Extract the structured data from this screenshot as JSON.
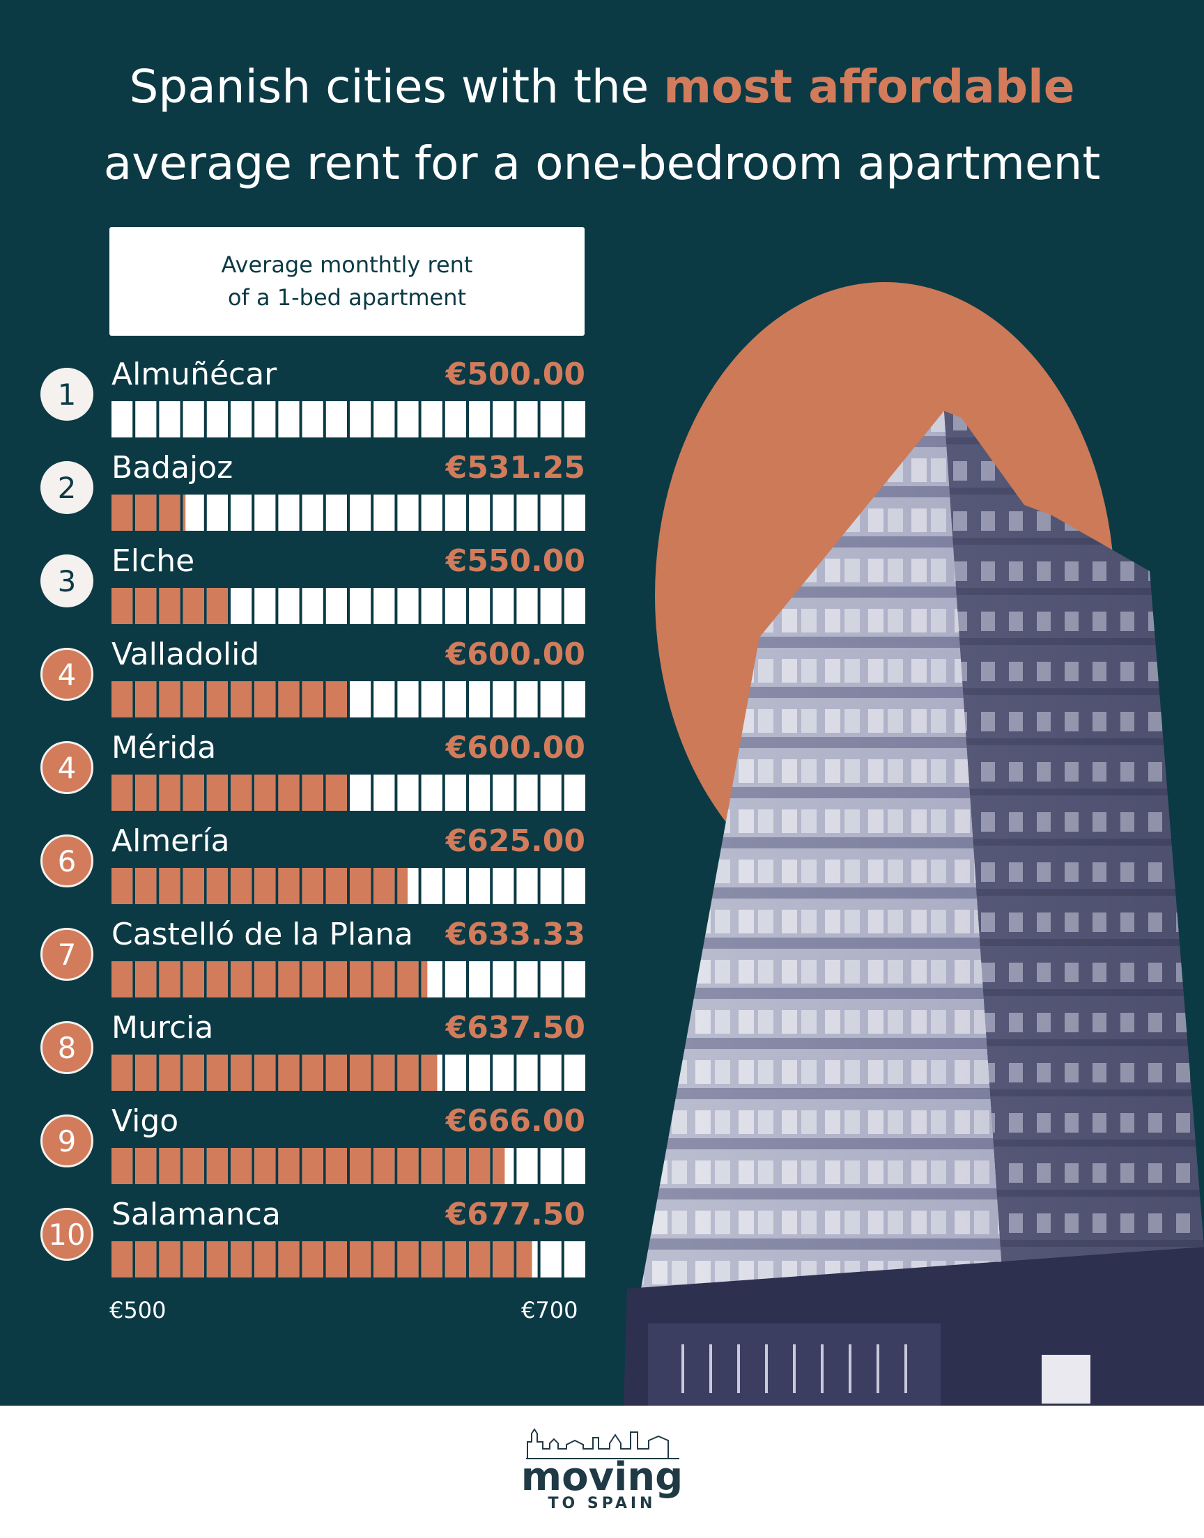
{
  "title": {
    "prefix": "Spanish cities with the ",
    "highlight": "most affordable",
    "line2": "average rent for a one-bedroom apartment"
  },
  "legend": {
    "line1": "Average monthtly rent",
    "line2": "of a 1-bed apartment"
  },
  "chart_data": {
    "type": "bar",
    "title": "Spanish cities with the most affordable average rent for a one-bedroom apartment",
    "ylabel": "Average monthtly rent of a 1-bed apartment",
    "categories": [
      "Almuñécar",
      "Badajoz",
      "Elche",
      "Valladolid",
      "Mérida",
      "Almería",
      "Castelló de la Plana",
      "Murcia",
      "Vigo",
      "Salamanca"
    ],
    "ranks": [
      "1",
      "2",
      "3",
      "4",
      "4",
      "6",
      "7",
      "8",
      "9",
      "10"
    ],
    "values": [
      500.0,
      531.25,
      550.0,
      600.0,
      600.0,
      625.0,
      633.33,
      637.5,
      666.0,
      677.5
    ],
    "value_labels": [
      "€500.00",
      "€531.25",
      "€550.00",
      "€600.00",
      "€600.00",
      "€625.00",
      "€633.33",
      "€637.50",
      "€666.00",
      "€677.50"
    ],
    "axis_min_label": "€500",
    "axis_max_label": "€700",
    "xlim": [
      500,
      700
    ],
    "colors": {
      "filled": "#d27c5c",
      "empty": "#ffffff",
      "background": "#0b3a45"
    }
  },
  "footer": {
    "brand": "moving",
    "tagline": "TO SPAIN"
  }
}
